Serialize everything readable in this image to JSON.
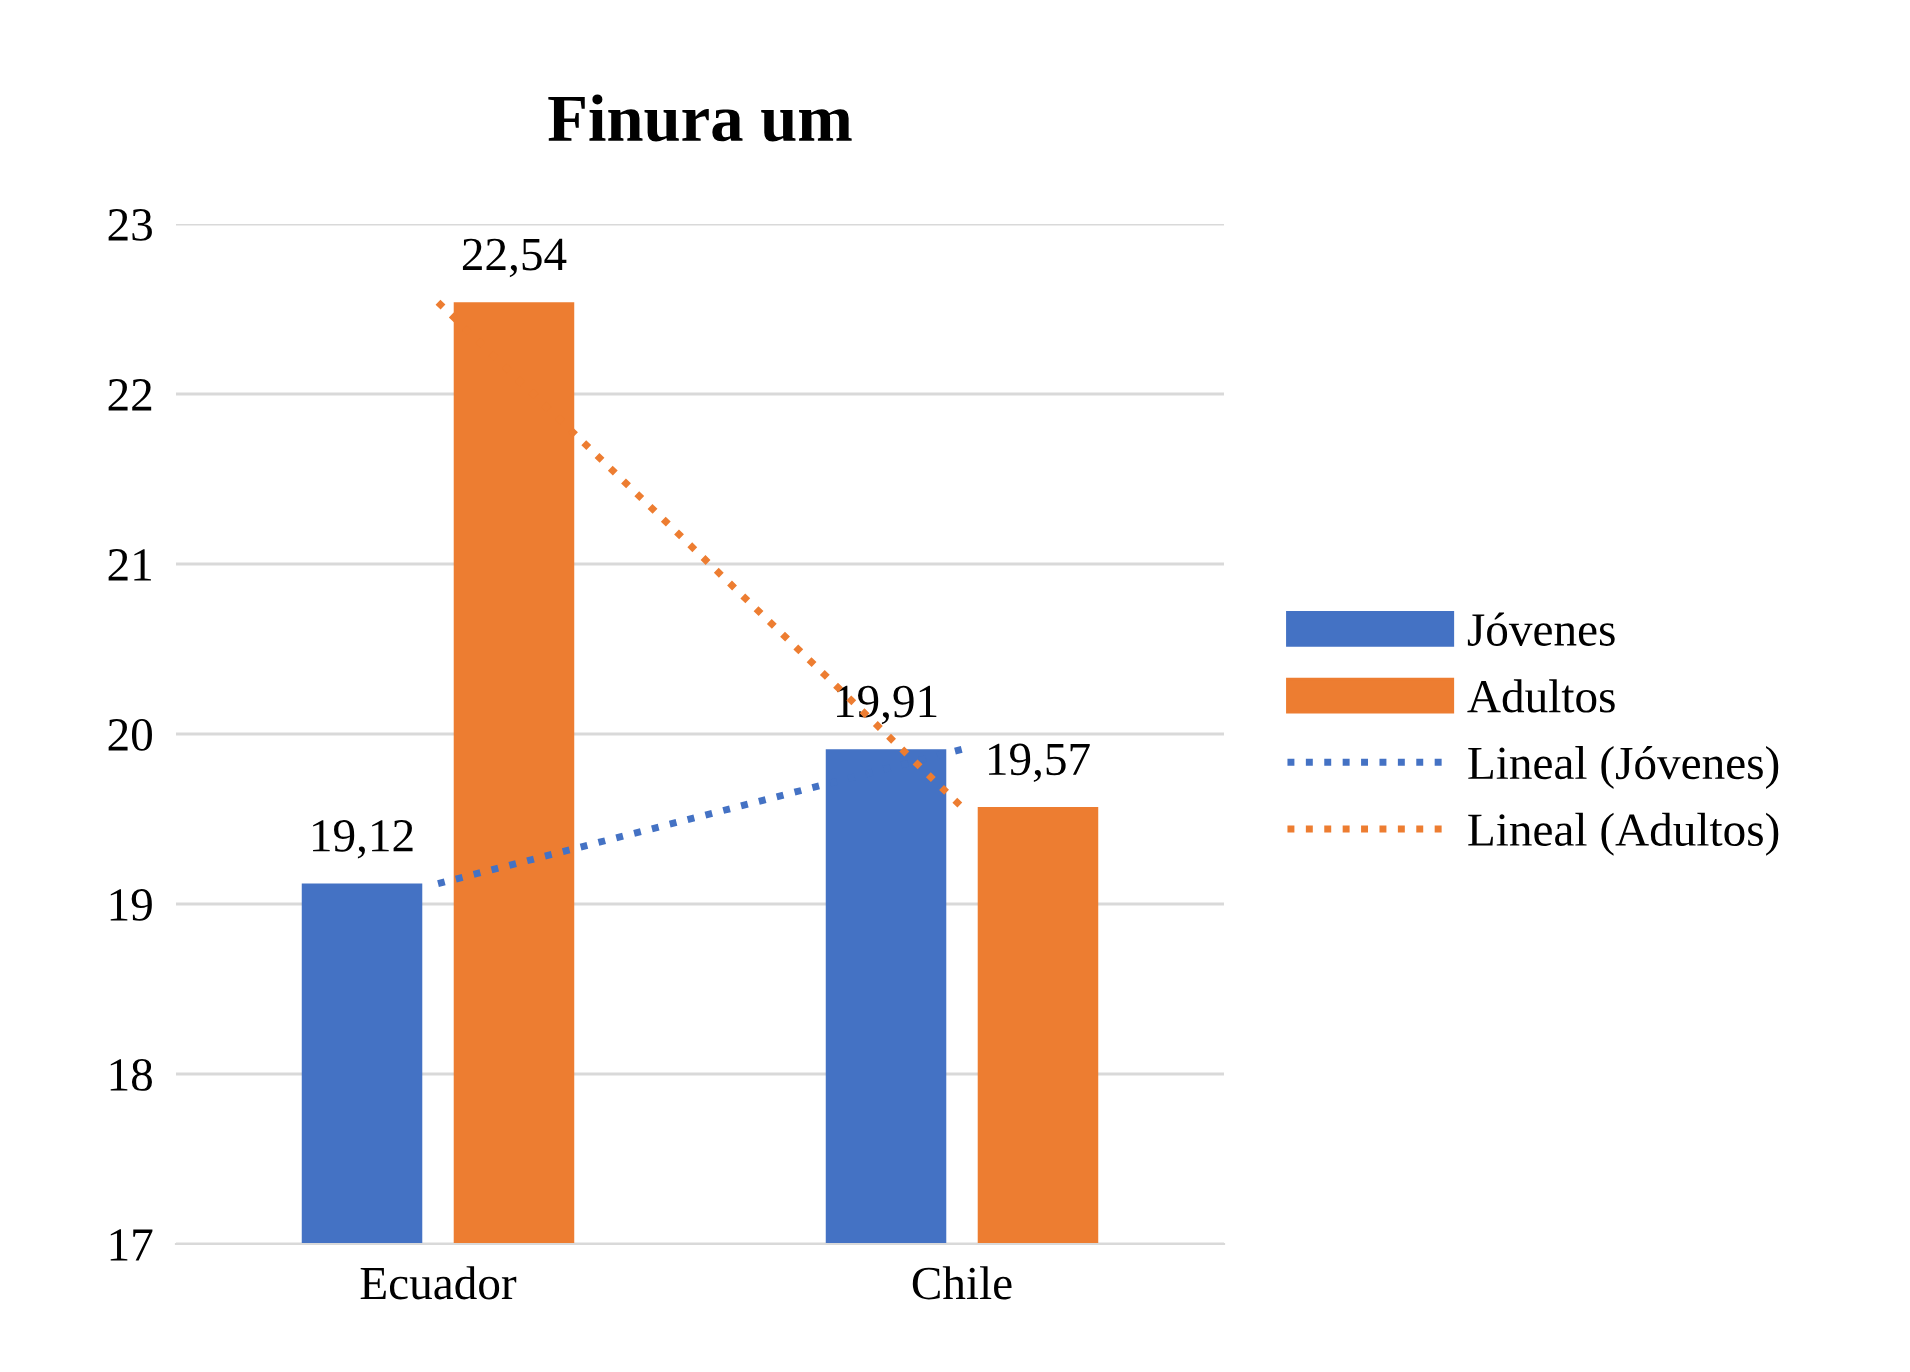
{
  "chart_data": {
    "type": "bar",
    "title": "Finura um",
    "categories": [
      "Ecuador",
      "Chile"
    ],
    "series": [
      {
        "name": "Jóvenes",
        "color": "#4472c4",
        "values": [
          19.12,
          19.91
        ],
        "value_labels": [
          "19,12",
          "19,91"
        ]
      },
      {
        "name": "Adultos",
        "color": "#ed7d31",
        "values": [
          22.54,
          19.57
        ],
        "value_labels": [
          "22,54",
          "19,57"
        ]
      },
      {
        "name": "Lineal (Jóvenes)",
        "type": "line",
        "color": "#4472c4",
        "x": [
          "Ecuador",
          "Chile"
        ],
        "values": [
          19.12,
          19.91
        ],
        "line_style": "dotted"
      },
      {
        "name": "Lineal (Adultos)",
        "type": "line",
        "color": "#ed7d31",
        "x": [
          "Ecuador",
          "Chile"
        ],
        "values": [
          22.54,
          19.57
        ],
        "line_style": "dotted"
      }
    ],
    "ylim": [
      17,
      23
    ],
    "yticks": [
      17,
      18,
      19,
      20,
      21,
      22,
      23
    ],
    "grid": "y",
    "legend": "right"
  }
}
